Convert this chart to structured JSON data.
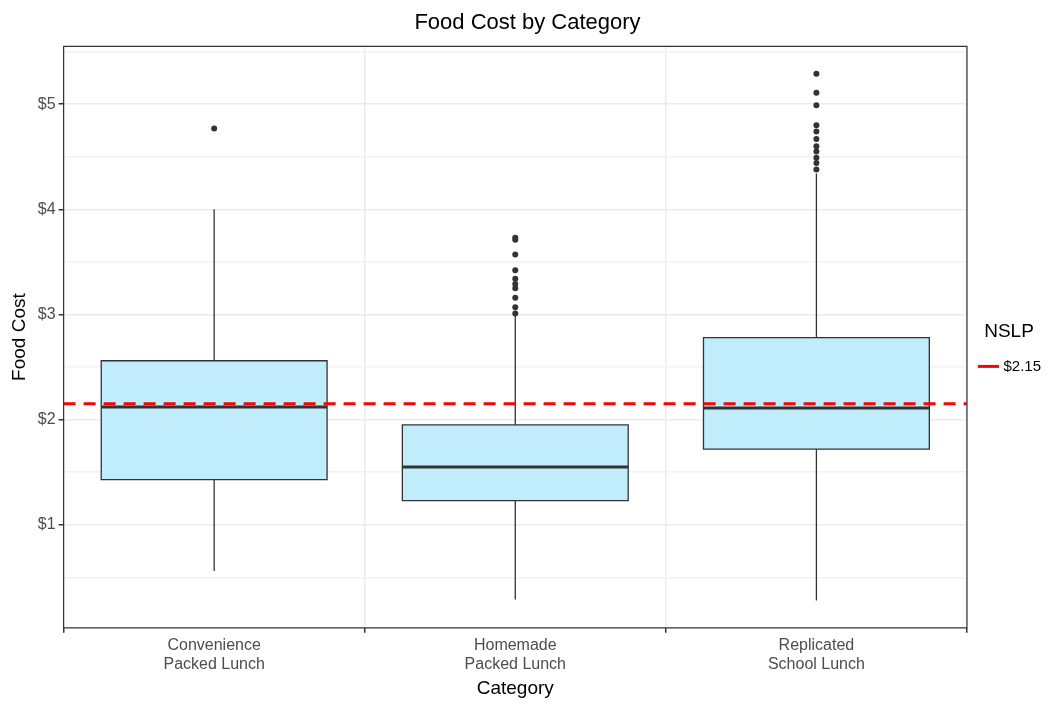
{
  "chart_data": {
    "type": "box",
    "title": "Food Cost by Category",
    "xlabel": "Category",
    "ylabel": "Food Cost",
    "legend_title": "NSLP",
    "legend": "right",
    "grid": true,
    "categories": [
      "Convenience\nPacked Lunch",
      "Homemade\nPacked Lunch",
      "Replicated\nSchool Lunch"
    ],
    "ylim": [
      0.02,
      5.55
    ],
    "yticks": [
      {
        "value": 0.5,
        "label": null
      },
      {
        "value": 1,
        "label": "$1"
      },
      {
        "value": 1.5,
        "label": null
      },
      {
        "value": 2,
        "label": "$2"
      },
      {
        "value": 2.5,
        "label": null
      },
      {
        "value": 3,
        "label": "$3"
      },
      {
        "value": 3.5,
        "label": null
      },
      {
        "value": 4,
        "label": "$4"
      },
      {
        "value": 4.5,
        "label": null
      },
      {
        "value": 5,
        "label": "$5"
      },
      {
        "value": 5.5,
        "label": null
      }
    ],
    "series": [
      {
        "color": "#c0ecfb",
        "boxes": [
          {
            "low": 0.56,
            "q1": 1.43,
            "median": 2.12,
            "q3": 2.56,
            "high": 4.0,
            "outliers": [
              4.77
            ]
          },
          {
            "low": 0.29,
            "q1": 1.23,
            "median": 1.55,
            "q3": 1.95,
            "high": 2.99,
            "outliers": [
              3.71,
              3.73,
              3.57,
              3.42,
              3.34,
              3.29,
              3.25,
              3.16,
              3.07,
              3.01
            ]
          },
          {
            "low": 0.28,
            "q1": 1.72,
            "median": 2.11,
            "q3": 2.78,
            "high": 4.34,
            "outliers": [
              5.29,
              5.11,
              4.99,
              4.8,
              4.74,
              4.67,
              4.6,
              4.55,
              4.49,
              4.44,
              4.38
            ]
          }
        ]
      }
    ],
    "ref_lines": [
      {
        "axis": "y",
        "value": 2.15,
        "label": "$2.15",
        "color": "#ff0000",
        "line_style": "dashed"
      }
    ]
  }
}
